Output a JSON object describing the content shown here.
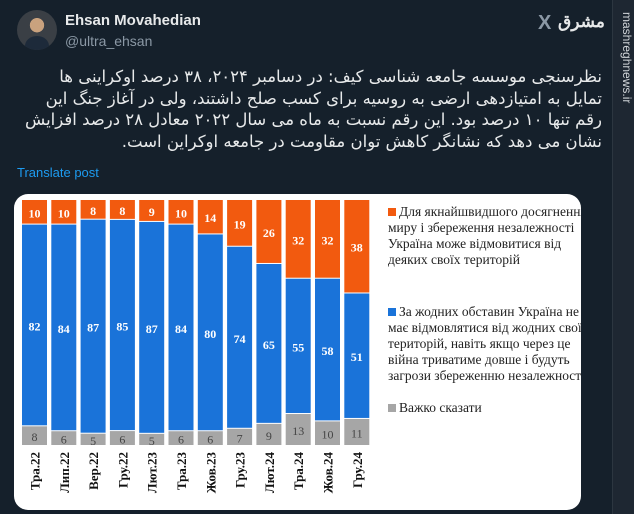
{
  "tweet": {
    "author_name": "Ehsan Movahedian",
    "author_handle": "@ultra_ehsan",
    "text": "نظرسنجی موسسه جامعه شناسی کیف: در دسامبر ۲۰۲۴، ۳۸ درصد اوکراینی ها تمایل به امتیازدهی ارضی به روسیه برای کسب صلح داشتند، ولی در آغاز جنگ این رقم تنها ۱۰ درصد بود. این رقم نسبت به ماه می سال ۲۰۲۲ معادل ۲۸ درصد افزایش نشان می دهد که نشانگر کاهش توان مقاومت در جامعه اوکراین است.",
    "translate_label": "Translate post"
  },
  "watermark": {
    "site": "mashreghnews.ir",
    "logo": "مشرق"
  },
  "x_logo": "X",
  "colors": {
    "orange": "#f25a0f",
    "blue": "#1a73d9",
    "gray": "#a6a6a6",
    "link": "#1d9bf0"
  },
  "chart_data": {
    "type": "bar",
    "stacked": true,
    "categories": [
      "Тра.22",
      "Лип.22",
      "Вер.22",
      "Гру.22",
      "Лют.23",
      "Тра.23",
      "Жов.23",
      "Гру.23",
      "Лют.24",
      "Тра.24",
      "Жов.24",
      "Гру.24"
    ],
    "series": [
      {
        "name": "Для якнайшвидшого досягнення миру і збереження незалежності Україна може відмовитися від деяких своїх територій",
        "color": "#f25a0f",
        "values": [
          10,
          10,
          8,
          8,
          9,
          10,
          14,
          19,
          26,
          32,
          32,
          38
        ]
      },
      {
        "name": "За жодних обставин Україна не має відмовлятися від жодних своїх територій, навіть якщо через це війна триватиме довше і будуть загрози збереженню незалежності",
        "color": "#1a73d9",
        "values": [
          82,
          84,
          87,
          85,
          87,
          84,
          80,
          74,
          65,
          55,
          58,
          51
        ]
      },
      {
        "name": "Важко сказати",
        "color": "#a6a6a6",
        "values": [
          8,
          6,
          5,
          6,
          5,
          6,
          6,
          7,
          9,
          13,
          10,
          11
        ]
      }
    ],
    "legend_placement": "right",
    "ylim": [
      0,
      100
    ]
  }
}
